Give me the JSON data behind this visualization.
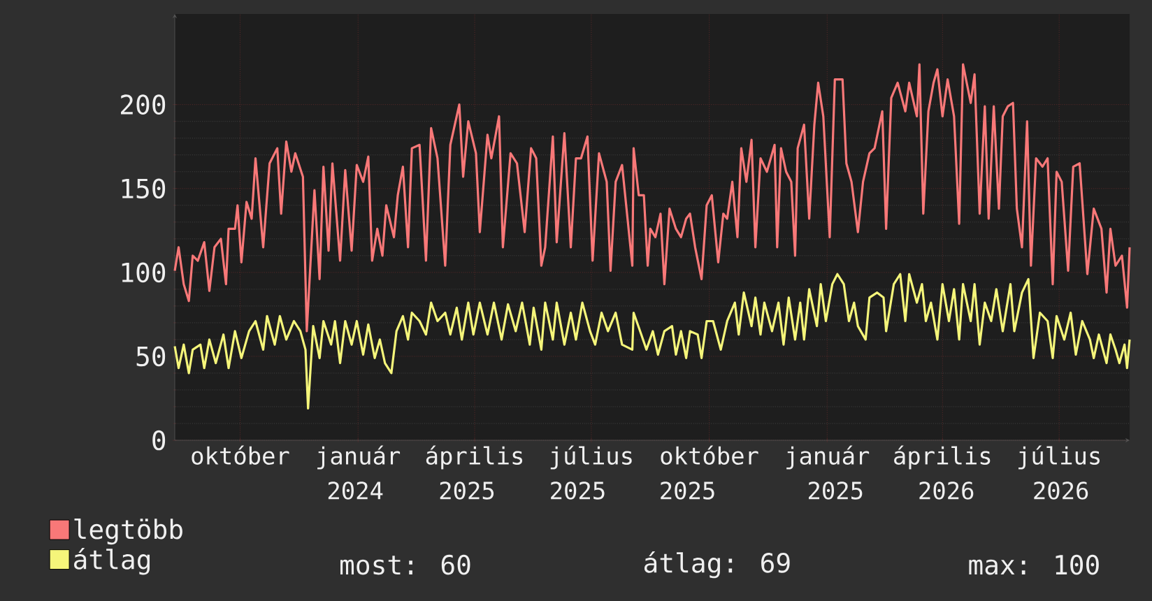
{
  "chart_data": {
    "type": "line",
    "xlim": [
      "2023-08-11",
      "2025-08-25"
    ],
    "ylim": [
      0,
      254
    ],
    "xticks": [
      {
        "value": "2023-10-01",
        "label": "október"
      },
      {
        "value": "2024-01-01",
        "label": "január"
      },
      {
        "value": "2024-04-01",
        "label": "április"
      },
      {
        "value": "2024-07-01",
        "label": "július"
      },
      {
        "value": "2024-10-01",
        "label": "október"
      },
      {
        "value": "2025-01-01",
        "label": "január"
      },
      {
        "value": "2025-04-01",
        "label": "április"
      },
      {
        "value": "2025-07-01",
        "label": "július"
      }
    ],
    "yticks": [
      0,
      50,
      100,
      150,
      200
    ],
    "grid": true,
    "legend": "bottom left",
    "annotations": [
      "2024",
      "2025",
      "2025",
      "2025",
      "2025",
      "2026",
      "2026",
      "most: 60",
      "átlag: 69",
      "max: 100"
    ],
    "series": [
      {
        "name": "legtöbb",
        "color": "#f87878",
        "x": [
          "2023-08-11",
          "2023-08-14",
          "2023-08-18",
          "2023-08-22",
          "2023-08-25",
          "2023-08-29",
          "2023-09-03",
          "2023-09-07",
          "2023-09-11",
          "2023-09-16",
          "2023-09-20",
          "2023-09-22",
          "2023-09-27",
          "2023-09-29",
          "2023-10-02",
          "2023-10-06",
          "2023-10-10",
          "2023-10-13",
          "2023-10-19",
          "2023-10-24",
          "2023-10-30",
          "2023-11-02",
          "2023-11-06",
          "2023-11-10",
          "2023-11-13",
          "2023-11-19",
          "2023-11-22",
          "2023-11-28",
          "2023-12-02",
          "2023-12-05",
          "2023-12-09",
          "2023-12-12",
          "2023-12-18",
          "2023-12-22",
          "2023-12-27",
          "2023-12-31",
          "2024-01-05",
          "2024-01-09",
          "2024-01-12",
          "2024-01-16",
          "2024-01-20",
          "2024-01-23",
          "2024-01-29",
          "2024-02-01",
          "2024-02-05",
          "2024-02-09",
          "2024-02-12",
          "2024-02-18",
          "2024-02-23",
          "2024-02-27",
          "2024-03-03",
          "2024-03-09",
          "2024-03-13",
          "2024-03-20",
          "2024-03-23",
          "2024-03-27",
          "2024-04-02",
          "2024-04-05",
          "2024-04-11",
          "2024-04-14",
          "2024-04-20",
          "2024-04-23",
          "2024-04-29",
          "2024-05-04",
          "2024-05-10",
          "2024-05-15",
          "2024-05-19",
          "2024-05-23",
          "2024-05-26",
          "2024-06-01",
          "2024-06-04",
          "2024-06-10",
          "2024-06-15",
          "2024-06-19",
          "2024-06-23",
          "2024-06-28",
          "2024-07-02",
          "2024-07-07",
          "2024-07-13",
          "2024-07-16",
          "2024-07-20",
          "2024-07-25",
          "2024-08-02",
          "2024-08-03",
          "2024-08-07",
          "2024-08-11",
          "2024-08-14",
          "2024-08-16",
          "2024-08-20",
          "2024-08-24",
          "2024-08-27",
          "2024-08-31",
          "2024-09-05",
          "2024-09-09",
          "2024-09-13",
          "2024-09-16",
          "2024-09-20",
          "2024-09-25",
          "2024-09-29",
          "2024-10-03",
          "2024-10-08",
          "2024-10-12",
          "2024-10-15",
          "2024-10-19",
          "2024-10-23",
          "2024-10-26",
          "2024-10-30",
          "2024-11-03",
          "2024-11-06",
          "2024-11-10",
          "2024-11-15",
          "2024-11-21",
          "2024-11-23",
          "2024-11-26",
          "2024-11-30",
          "2024-12-04",
          "2024-12-07",
          "2024-12-09",
          "2024-12-14",
          "2024-12-18",
          "2024-12-22",
          "2024-12-25",
          "2024-12-29",
          "2025-01-03",
          "2025-01-07",
          "2025-01-13",
          "2025-01-16",
          "2025-01-20",
          "2025-01-25",
          "2025-01-29",
          "2025-02-03",
          "2025-02-07",
          "2025-02-13",
          "2025-02-16",
          "2025-02-20",
          "2025-02-25",
          "2025-03-03",
          "2025-03-06",
          "2025-03-12",
          "2025-03-14",
          "2025-03-17",
          "2025-03-21",
          "2025-03-25",
          "2025-03-28",
          "2025-04-01",
          "2025-04-05",
          "2025-04-10",
          "2025-04-14",
          "2025-04-17",
          "2025-04-23",
          "2025-04-26",
          "2025-04-30",
          "2025-05-04",
          "2025-05-07",
          "2025-05-11",
          "2025-05-15",
          "2025-05-18",
          "2025-05-22",
          "2025-05-26",
          "2025-05-29",
          "2025-06-02",
          "2025-06-06",
          "2025-06-09",
          "2025-06-13",
          "2025-06-18",
          "2025-06-22",
          "2025-06-26",
          "2025-06-29",
          "2025-07-03",
          "2025-07-08",
          "2025-07-12",
          "2025-07-17",
          "2025-07-23",
          "2025-07-28",
          "2025-08-03",
          "2025-08-07",
          "2025-08-10",
          "2025-08-14",
          "2025-08-19",
          "2025-08-23",
          "2025-08-25"
        ],
        "values": [
          101,
          115,
          93,
          83,
          110,
          107,
          118,
          89,
          115,
          120,
          93,
          126,
          126,
          140,
          106,
          142,
          132,
          168,
          115,
          165,
          174,
          135,
          178,
          160,
          171,
          157,
          65,
          149,
          96,
          163,
          113,
          165,
          107,
          161,
          113,
          164,
          154,
          169,
          107,
          126,
          110,
          140,
          121,
          146,
          163,
          115,
          174,
          176,
          107,
          186,
          168,
          104,
          176,
          200,
          157,
          190,
          171,
          124,
          182,
          168,
          193,
          115,
          171,
          165,
          124,
          174,
          168,
          104,
          115,
          181,
          118,
          183,
          115,
          168,
          168,
          181,
          107,
          171,
          154,
          101,
          154,
          164,
          104,
          174,
          146,
          146,
          104,
          126,
          121,
          135,
          93,
          138,
          126,
          121,
          132,
          135,
          115,
          96,
          140,
          146,
          106,
          135,
          132,
          154,
          121,
          174,
          154,
          179,
          115,
          168,
          160,
          176,
          115,
          174,
          160,
          154,
          110,
          174,
          188,
          132,
          188,
          213,
          193,
          121,
          215,
          215,
          165,
          154,
          124,
          154,
          171,
          174,
          196,
          126,
          204,
          213,
          196,
          213,
          193,
          224,
          135,
          196,
          213,
          221,
          193,
          215,
          193,
          129,
          224,
          201,
          218,
          135,
          199,
          132,
          199,
          138,
          193,
          199,
          201,
          138,
          115,
          190,
          104,
          168,
          163,
          168,
          93,
          160,
          154,
          101,
          163,
          165,
          99,
          138,
          126,
          88,
          126,
          104,
          110,
          79,
          115
        ]
      },
      {
        "name": "átlag",
        "color": "#f5f57a",
        "x": [
          "2023-08-11",
          "2023-08-14",
          "2023-08-18",
          "2023-08-22",
          "2023-08-25",
          "2023-08-31",
          "2023-09-03",
          "2023-09-07",
          "2023-09-12",
          "2023-09-18",
          "2023-09-22",
          "2023-09-27",
          "2023-10-02",
          "2023-10-08",
          "2023-10-13",
          "2023-10-19",
          "2023-10-22",
          "2023-10-28",
          "2023-11-01",
          "2023-11-06",
          "2023-11-12",
          "2023-11-17",
          "2023-11-21",
          "2023-11-23",
          "2023-11-27",
          "2023-12-02",
          "2023-12-05",
          "2023-12-11",
          "2023-12-14",
          "2023-12-18",
          "2023-12-22",
          "2023-12-27",
          "2023-12-31",
          "2024-01-05",
          "2024-01-09",
          "2024-01-14",
          "2024-01-18",
          "2024-01-22",
          "2024-01-27",
          "2024-01-31",
          "2024-02-05",
          "2024-02-09",
          "2024-02-12",
          "2024-02-18",
          "2024-02-23",
          "2024-02-27",
          "2024-03-03",
          "2024-03-09",
          "2024-03-13",
          "2024-03-18",
          "2024-03-22",
          "2024-03-27",
          "2024-03-31",
          "2024-04-05",
          "2024-04-11",
          "2024-04-16",
          "2024-04-22",
          "2024-04-27",
          "2024-05-03",
          "2024-05-08",
          "2024-05-14",
          "2024-05-17",
          "2024-05-23",
          "2024-05-26",
          "2024-06-01",
          "2024-06-04",
          "2024-06-10",
          "2024-06-15",
          "2024-06-19",
          "2024-06-24",
          "2024-06-30",
          "2024-07-04",
          "2024-07-09",
          "2024-07-14",
          "2024-07-20",
          "2024-07-25",
          "2024-08-02",
          "2024-08-03",
          "2024-08-09",
          "2024-08-13",
          "2024-08-18",
          "2024-08-22",
          "2024-08-27",
          "2024-09-02",
          "2024-09-05",
          "2024-09-09",
          "2024-09-13",
          "2024-09-16",
          "2024-09-22",
          "2024-09-25",
          "2024-09-29",
          "2024-10-04",
          "2024-10-10",
          "2024-10-15",
          "2024-10-21",
          "2024-10-24",
          "2024-10-28",
          "2024-11-03",
          "2024-11-06",
          "2024-11-10",
          "2024-11-13",
          "2024-11-19",
          "2024-11-24",
          "2024-11-28",
          "2024-12-02",
          "2024-12-07",
          "2024-12-11",
          "2024-12-14",
          "2024-12-18",
          "2024-12-24",
          "2024-12-27",
          "2024-12-31",
          "2025-01-05",
          "2025-01-09",
          "2025-01-14",
          "2025-01-18",
          "2025-01-22",
          "2025-01-25",
          "2025-01-31",
          "2025-02-03",
          "2025-02-09",
          "2025-02-14",
          "2025-02-16",
          "2025-02-22",
          "2025-02-27",
          "2025-03-03",
          "2025-03-06",
          "2025-03-12",
          "2025-03-16",
          "2025-03-19",
          "2025-03-23",
          "2025-03-28",
          "2025-04-01",
          "2025-04-06",
          "2025-04-10",
          "2025-04-14",
          "2025-04-17",
          "2025-04-23",
          "2025-04-26",
          "2025-04-30",
          "2025-05-04",
          "2025-05-09",
          "2025-05-13",
          "2025-05-18",
          "2025-05-24",
          "2025-05-27",
          "2025-06-02",
          "2025-06-07",
          "2025-06-11",
          "2025-06-16",
          "2025-06-22",
          "2025-06-26",
          "2025-06-29",
          "2025-07-05",
          "2025-07-10",
          "2025-07-14",
          "2025-07-19",
          "2025-07-25",
          "2025-07-28",
          "2025-08-01",
          "2025-08-07",
          "2025-08-10",
          "2025-08-14",
          "2025-08-17",
          "2025-08-21",
          "2025-08-23",
          "2025-08-25"
        ],
        "values": [
          56,
          43,
          57,
          40,
          54,
          57,
          43,
          60,
          46,
          63,
          43,
          65,
          49,
          65,
          71,
          54,
          74,
          57,
          74,
          60,
          71,
          65,
          54,
          19,
          68,
          49,
          71,
          57,
          71,
          46,
          71,
          57,
          71,
          51,
          69,
          49,
          60,
          46,
          40,
          65,
          74,
          60,
          76,
          71,
          63,
          82,
          71,
          76,
          63,
          79,
          60,
          82,
          63,
          82,
          63,
          82,
          60,
          81,
          65,
          82,
          57,
          79,
          54,
          82,
          60,
          82,
          57,
          76,
          60,
          82,
          65,
          57,
          76,
          65,
          76,
          57,
          54,
          76,
          63,
          54,
          65,
          51,
          65,
          68,
          51,
          65,
          49,
          65,
          63,
          49,
          71,
          71,
          54,
          71,
          82,
          63,
          88,
          68,
          85,
          63,
          82,
          65,
          82,
          57,
          85,
          60,
          82,
          60,
          90,
          68,
          93,
          71,
          93,
          99,
          93,
          71,
          82,
          68,
          60,
          85,
          88,
          85,
          65,
          93,
          99,
          71,
          99,
          82,
          93,
          71,
          82,
          60,
          93,
          71,
          90,
          60,
          93,
          71,
          93,
          57,
          82,
          71,
          90,
          65,
          93,
          65,
          88,
          96,
          49,
          76,
          71,
          49,
          74,
          60,
          76,
          51,
          71,
          60,
          49,
          63,
          46,
          63,
          54,
          46,
          57,
          43,
          60
        ]
      }
    ]
  }
}
